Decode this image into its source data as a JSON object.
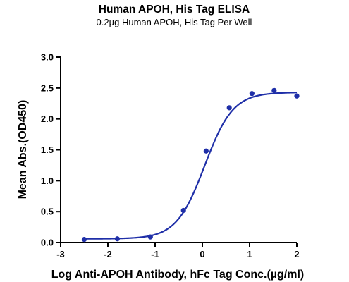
{
  "chart_data": {
    "type": "scatter",
    "title": "Human APOH, His Tag ELISA",
    "subtitle": "0.2µg Human APOH, His Tag Per Well",
    "xlabel": "Log Anti-APOH Antibody, hFc Tag Conc.(µg/ml)",
    "ylabel": "Mean Abs.(OD450)",
    "xlim": [
      -3,
      2
    ],
    "ylim": [
      0,
      3.0
    ],
    "xticks": [
      "-3",
      "-2",
      "-1",
      "0",
      "1",
      "2"
    ],
    "yticks": [
      "0.0",
      "0.5",
      "1.0",
      "1.5",
      "2.0",
      "2.5",
      "3.0"
    ],
    "grid": false,
    "series": [
      {
        "x": [
          -2.5,
          -1.8,
          -1.1,
          -0.4,
          0.08,
          0.57,
          1.05,
          1.52,
          2.0
        ],
        "y": [
          0.05,
          0.06,
          0.09,
          0.52,
          1.48,
          2.18,
          2.41,
          2.46,
          2.37
        ],
        "fit": "4PL sigmoidal curve",
        "color": "#1f2fa8"
      }
    ]
  }
}
